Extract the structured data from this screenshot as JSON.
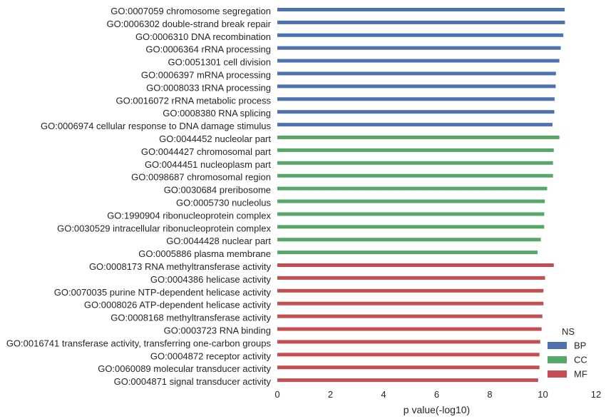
{
  "chart_data": {
    "type": "bar",
    "orientation": "horizontal",
    "xlabel": "p value(-log10)",
    "xlim": [
      0,
      12
    ],
    "xticks": [
      "0",
      "2",
      "4",
      "6",
      "8",
      "10",
      "12"
    ],
    "grid": false,
    "legend": {
      "title": "NS",
      "position": "bottom-right",
      "entries": [
        {
          "name": "BP",
          "color": "#4C72B0"
        },
        {
          "name": "CC",
          "color": "#55A868"
        },
        {
          "name": "MF",
          "color": "#C44E52"
        }
      ]
    },
    "categories": [
      {
        "label": "GO:0007059 chromosome segregation",
        "value": 10.82,
        "group": "BP"
      },
      {
        "label": "GO:0006302 double-strand break repair",
        "value": 10.83,
        "group": "BP"
      },
      {
        "label": "GO:0006310 DNA recombination",
        "value": 10.77,
        "group": "BP"
      },
      {
        "label": "GO:0006364 rRNA processing",
        "value": 10.67,
        "group": "BP"
      },
      {
        "label": "GO:0051301 cell division",
        "value": 10.62,
        "group": "BP"
      },
      {
        "label": "GO:0006397 mRNA processing",
        "value": 10.49,
        "group": "BP"
      },
      {
        "label": "GO:0008033 tRNA processing",
        "value": 10.48,
        "group": "BP"
      },
      {
        "label": "GO:0016072 rRNA metabolic process",
        "value": 10.44,
        "group": "BP"
      },
      {
        "label": "GO:0008380 RNA splicing",
        "value": 10.43,
        "group": "BP"
      },
      {
        "label": "GO:0006974 cellular response to DNA damage stimulus",
        "value": 10.36,
        "group": "BP"
      },
      {
        "label": "GO:0044452 nucleolar part",
        "value": 10.62,
        "group": "CC"
      },
      {
        "label": "GO:0044427 chromosomal part",
        "value": 10.41,
        "group": "CC"
      },
      {
        "label": "GO:0044451 nucleoplasm part",
        "value": 10.38,
        "group": "CC"
      },
      {
        "label": "GO:0098687 chromosomal region",
        "value": 10.38,
        "group": "CC"
      },
      {
        "label": "GO:0030684 preribosome",
        "value": 10.16,
        "group": "CC"
      },
      {
        "label": "GO:0005730 nucleolus",
        "value": 10.07,
        "group": "CC"
      },
      {
        "label": "GO:1990904 ribonucleoprotein complex",
        "value": 10.05,
        "group": "CC"
      },
      {
        "label": "GO:0030529 intracellular ribonucleoprotein complex",
        "value": 10.05,
        "group": "CC"
      },
      {
        "label": "GO:0044428 nuclear part",
        "value": 9.92,
        "group": "CC"
      },
      {
        "label": "GO:0005886 plasma membrane",
        "value": 9.8,
        "group": "CC"
      },
      {
        "label": "GO:0008173 RNA methyltransferase activity",
        "value": 10.41,
        "group": "MF"
      },
      {
        "label": "GO:0004386 helicase activity",
        "value": 10.08,
        "group": "MF"
      },
      {
        "label": "GO:0070035 purine NTP-dependent helicase activity",
        "value": 10.02,
        "group": "MF"
      },
      {
        "label": "GO:0008026 ATP-dependent helicase activity",
        "value": 10.02,
        "group": "MF"
      },
      {
        "label": "GO:0008168 methyltransferase activity",
        "value": 9.98,
        "group": "MF"
      },
      {
        "label": "GO:0003723 RNA binding",
        "value": 9.95,
        "group": "MF"
      },
      {
        "label": "GO:0016741 transferase activity, transferring one-carbon groups",
        "value": 9.9,
        "group": "MF"
      },
      {
        "label": "GO:0004872 receptor activity",
        "value": 9.87,
        "group": "MF"
      },
      {
        "label": "GO:0060089 molecular transducer activity",
        "value": 9.87,
        "group": "MF"
      },
      {
        "label": "GO:0004871 signal transducer activity",
        "value": 9.82,
        "group": "MF"
      }
    ]
  }
}
